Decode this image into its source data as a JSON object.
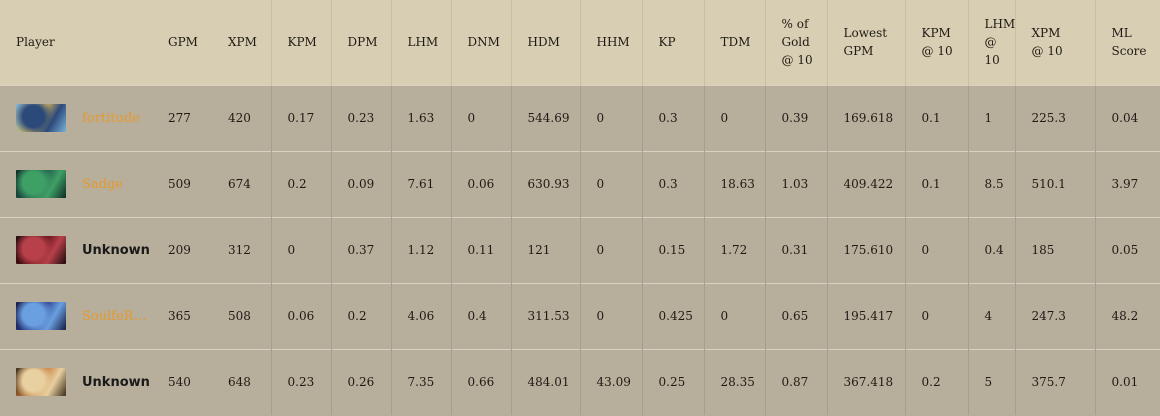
{
  "columns": [
    "Player",
    "GPM",
    "XPM",
    "KPM",
    "DPM",
    "LHM",
    "DNM",
    "HDM",
    "HHM",
    "KP",
    "TDM",
    "% of\nGold\n@ 10",
    "Lowest\nGPM",
    "KPM\n@ 10",
    "LHM\n@ 10",
    "XPM\n@ 10",
    "ML\nScore"
  ],
  "rows": [
    {
      "player": "fortitude",
      "known": true,
      "hero_icon": "hero-portrait-keeper",
      "colors": [
        "#d9b45a",
        "#2b4a7a",
        "#7ab0d8"
      ],
      "cells": [
        "277",
        "420",
        "0.17",
        "0.23",
        "1.63",
        "0",
        "544.69",
        "0",
        "0.3",
        "0",
        "0.39",
        "169.618",
        "0.1",
        "1",
        "225.3",
        "0.04"
      ]
    },
    {
      "player": "Sadge",
      "known": true,
      "hero_icon": "hero-portrait-tidehunter",
      "colors": [
        "#1f5a4a",
        "#3fa066",
        "#0d2a26"
      ],
      "cells": [
        "509",
        "674",
        "0.2",
        "0.09",
        "7.61",
        "0.06",
        "630.93",
        "0",
        "0.3",
        "18.63",
        "1.03",
        "409.422",
        "0.1",
        "8.5",
        "510.1",
        "3.97"
      ]
    },
    {
      "player": "Unknown",
      "known": false,
      "hero_icon": "hero-portrait-demon",
      "colors": [
        "#5a0e16",
        "#b8404a",
        "#1b0a0a"
      ],
      "cells": [
        "209",
        "312",
        "0",
        "0.37",
        "1.12",
        "0.11",
        "121",
        "0",
        "0.15",
        "1.72",
        "0.31",
        "175.610",
        "0",
        "0.4",
        "185",
        "0.05"
      ]
    },
    {
      "player": "SoulfeR_...",
      "known": true,
      "hero_icon": "hero-portrait-spirit",
      "colors": [
        "#2a3a8a",
        "#6aa0e0",
        "#141a40"
      ],
      "cells": [
        "365",
        "508",
        "0.06",
        "0.2",
        "4.06",
        "0.4",
        "311.53",
        "0",
        "0.425",
        "0",
        "0.65",
        "195.417",
        "0",
        "4",
        "247.3",
        "48.2"
      ]
    },
    {
      "player": "Unknown",
      "known": false,
      "hero_icon": "hero-portrait-warrior",
      "colors": [
        "#c87a3a",
        "#e8d0a0",
        "#3a2a1a"
      ],
      "cells": [
        "540",
        "648",
        "0.23",
        "0.26",
        "7.35",
        "0.66",
        "484.01",
        "43.09",
        "0.25",
        "28.35",
        "0.87",
        "367.418",
        "0.2",
        "5",
        "375.7",
        "0.01"
      ]
    }
  ]
}
